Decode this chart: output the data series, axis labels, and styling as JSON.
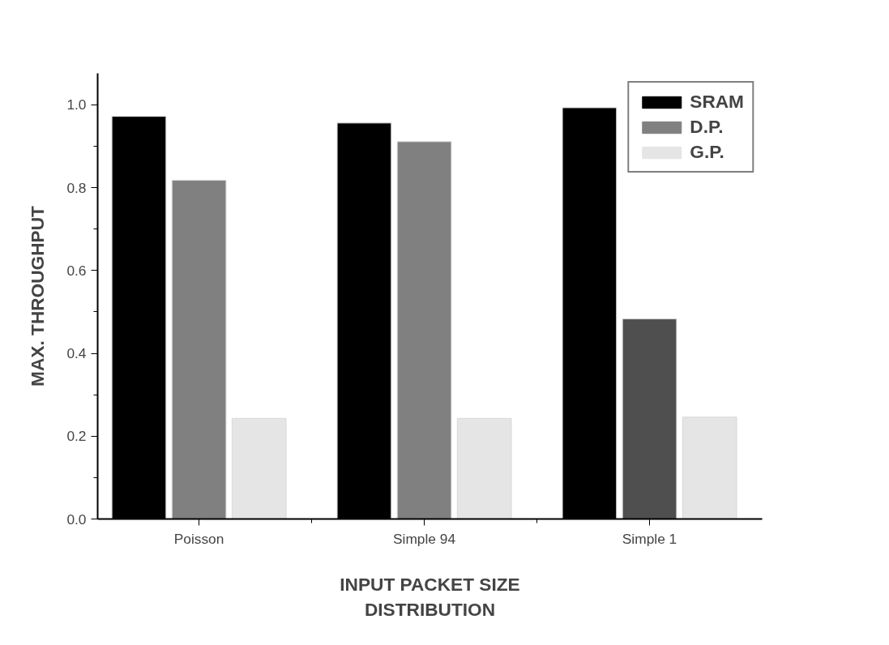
{
  "chart_data": {
    "type": "bar",
    "xlabel": "INPUT PACKET SIZE\nDISTRIBUTION",
    "ylabel": "MAX. THROUGHPUT",
    "categories": [
      "Poisson",
      "Simple 94",
      "Simple 1"
    ],
    "series": [
      {
        "name": "SRAM",
        "color": "#000000",
        "values": [
          0.972,
          0.956,
          0.993
        ]
      },
      {
        "name": "D.P.",
        "color": "#808080",
        "colors": [
          "#808080",
          "#808080",
          "#4f4f4f"
        ],
        "values": [
          0.818,
          0.911,
          0.483
        ]
      },
      {
        "name": "G.P.",
        "color": "#e5e5e5",
        "values": [
          0.243,
          0.243,
          0.246
        ]
      }
    ],
    "ylim": [
      0,
      1.076
    ],
    "yticks": [
      "0.0",
      {
        "value": 0.1,
        "label": null
      },
      {
        "value": 0.2,
        "label": "0.2"
      },
      {
        "value": 0.3,
        "label": null
      },
      {
        "value": 0.4,
        "label": "0.4"
      },
      {
        "value": 0.5,
        "label": null
      },
      {
        "value": 0.6,
        "label": "0.6"
      },
      {
        "value": 0.7,
        "label": null
      },
      {
        "value": 0.8,
        "label": "0.8"
      },
      {
        "value": 0.9,
        "label": null
      },
      {
        "value": 1.0,
        "label": "1.0"
      }
    ],
    "grid": false,
    "legend": "top right"
  }
}
